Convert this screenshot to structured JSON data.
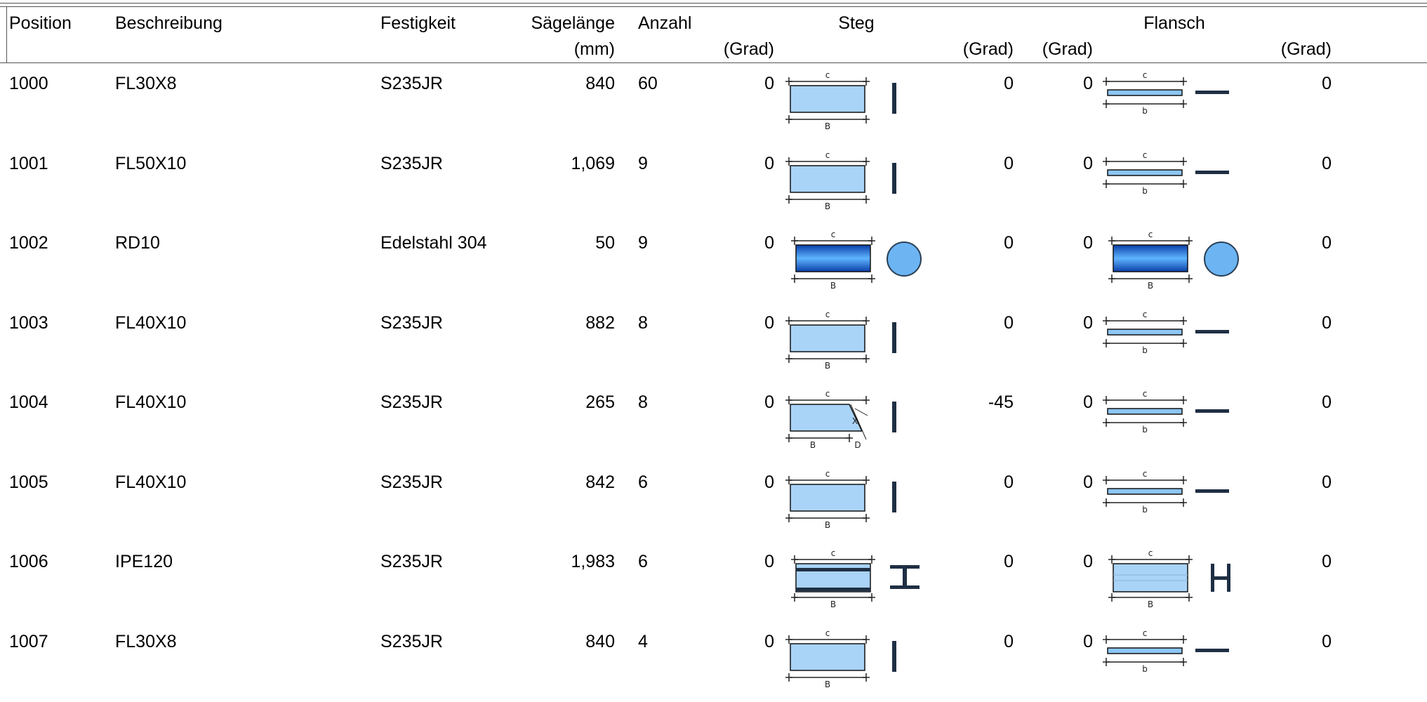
{
  "header": {
    "position": "Position",
    "beschreibung": "Beschreibung",
    "festigkeit": "Festigkeit",
    "saegelaenge": "Sägelänge",
    "saegelaenge_unit": "(mm)",
    "anzahl": "Anzahl",
    "steg": "Steg",
    "flansch": "Flansch",
    "grad": "(Grad)"
  },
  "dim_labels": {
    "c": "c",
    "B": "B",
    "b": "b",
    "X": "X",
    "D": "D"
  },
  "rows": [
    {
      "position": "1000",
      "beschreibung": "FL30X8",
      "festigkeit": "S235JR",
      "saegelaenge": "840",
      "anzahl": "60",
      "steg_start": "0",
      "steg_end": "0",
      "flansch_start": "0",
      "flansch_end": "0",
      "steg_icon": "flat-bar-web-icon",
      "flansch_icon": "flat-bar-flange-icon"
    },
    {
      "position": "1001",
      "beschreibung": "FL50X10",
      "festigkeit": "S235JR",
      "saegelaenge": "1,069",
      "anzahl": "9",
      "steg_start": "0",
      "steg_end": "0",
      "flansch_start": "0",
      "flansch_end": "0",
      "steg_icon": "flat-bar-web-icon",
      "flansch_icon": "flat-bar-flange-icon"
    },
    {
      "position": "1002",
      "beschreibung": "RD10",
      "festigkeit": "Edelstahl 304",
      "saegelaenge": "50",
      "anzahl": "9",
      "steg_start": "0",
      "steg_end": "0",
      "flansch_start": "0",
      "flansch_end": "0",
      "steg_icon": "round-bar-icon",
      "flansch_icon": "round-bar-icon"
    },
    {
      "position": "1003",
      "beschreibung": "FL40X10",
      "festigkeit": "S235JR",
      "saegelaenge": "882",
      "anzahl": "8",
      "steg_start": "0",
      "steg_end": "0",
      "flansch_start": "0",
      "flansch_end": "0",
      "steg_icon": "flat-bar-web-icon",
      "flansch_icon": "flat-bar-flange-icon"
    },
    {
      "position": "1004",
      "beschreibung": "FL40X10",
      "festigkeit": "S235JR",
      "saegelaenge": "265",
      "anzahl": "8",
      "steg_start": "0",
      "steg_end": "-45",
      "flansch_start": "0",
      "flansch_end": "0",
      "steg_icon": "flat-bar-mitre-icon",
      "flansch_icon": "flat-bar-flange-icon"
    },
    {
      "position": "1005",
      "beschreibung": "FL40X10",
      "festigkeit": "S235JR",
      "saegelaenge": "842",
      "anzahl": "6",
      "steg_start": "0",
      "steg_end": "0",
      "flansch_start": "0",
      "flansch_end": "0",
      "steg_icon": "flat-bar-web-icon",
      "flansch_icon": "flat-bar-flange-icon"
    },
    {
      "position": "1006",
      "beschreibung": "IPE120",
      "festigkeit": "S235JR",
      "saegelaenge": "1,983",
      "anzahl": "6",
      "steg_start": "0",
      "steg_end": "0",
      "flansch_start": "0",
      "flansch_end": "0",
      "steg_icon": "i-beam-web-icon",
      "flansch_icon": "i-beam-flange-icon"
    },
    {
      "position": "1007",
      "beschreibung": "FL30X8",
      "festigkeit": "S235JR",
      "saegelaenge": "840",
      "anzahl": "4",
      "steg_start": "0",
      "steg_end": "0",
      "flansch_start": "0",
      "flansch_end": "0",
      "steg_icon": "flat-bar-web-icon",
      "flansch_icon": "flat-bar-flange-icon"
    }
  ]
}
